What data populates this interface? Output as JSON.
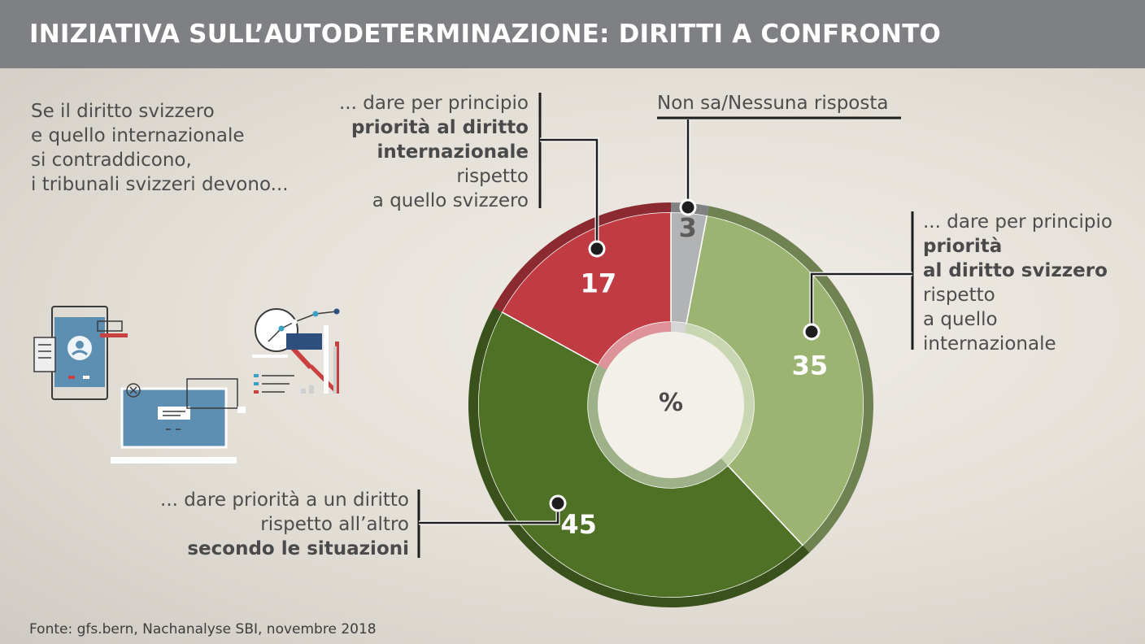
{
  "title": "INIZIATIVA SULL’AUTODETERMINAZIONE: DIRITTI A CONFRONTO",
  "intro": [
    "Se il diritto svizzero",
    "e quello internazionale",
    "si contraddicono,",
    "i tribunali svizzeri devono..."
  ],
  "source": "Fonte: gfs.bern, Nachanalyse SBI, novembre 2018",
  "center_label": "%",
  "labels": {
    "no_answer": "Non sa/Nessuna risposta",
    "international": [
      "... dare per principio",
      "priorità al diritto",
      "internazionale",
      "rispetto",
      "a quello svizzero"
    ],
    "swiss": [
      "...  dare per principio",
      "priorità",
      "al diritto svizzero",
      "rispetto",
      "a quello",
      "internazionale"
    ],
    "situations": [
      "... dare priorità a un diritto",
      "rispetto all’altro",
      "secondo le situazioni"
    ]
  },
  "colors": {
    "header": "#7f8083",
    "no_answer": "#b2b3b5",
    "swiss": "#9bb472",
    "situations": "#4f7126",
    "international": "#c13b43"
  },
  "chart_data": {
    "type": "pie",
    "unit": "%",
    "categories": [
      "Non sa/Nessuna risposta",
      "priorità al diritto svizzero",
      "secondo le situazioni",
      "priorità al diritto internazionale"
    ],
    "values": [
      3,
      35,
      45,
      17
    ]
  }
}
